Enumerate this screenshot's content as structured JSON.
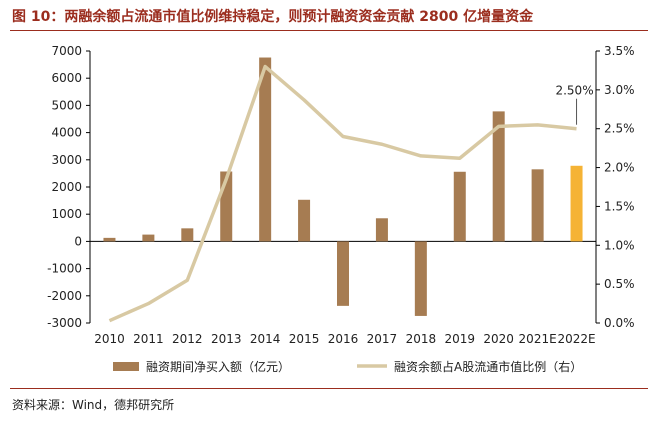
{
  "title": "图 10：两融余额占流通市值比例维持稳定，则预计融资资金贡献 2800 亿增量资金",
  "source": "资料来源：Wind，德邦研究所",
  "colors": {
    "title": "#9b2d1e",
    "bar": "#a67c52",
    "bar_highlight": "#f5b335",
    "line": "#d8c9a3",
    "axis": "#000000"
  },
  "chart_data": {
    "type": "bar",
    "categories": [
      "2010",
      "2011",
      "2012",
      "2013",
      "2014",
      "2015",
      "2016",
      "2017",
      "2018",
      "2019",
      "2020",
      "2021E",
      "2022E"
    ],
    "series": [
      {
        "name": "融资期间净买入额（亿元）",
        "type": "bar",
        "axis": "left",
        "values": [
          130,
          250,
          480,
          2570,
          6760,
          1530,
          -2370,
          850,
          -2740,
          2560,
          4780,
          2650,
          2780
        ],
        "highlight_index": 12
      },
      {
        "name": "融资余额占A股流通市值比例（右）",
        "type": "line",
        "axis": "right",
        "values": [
          0.03,
          0.25,
          0.55,
          1.85,
          3.3,
          2.87,
          2.4,
          2.3,
          2.15,
          2.12,
          2.53,
          2.55,
          2.5
        ]
      }
    ],
    "y_left": {
      "min": -3000,
      "max": 7000,
      "ticks": [
        "7000",
        "6000",
        "5000",
        "4000",
        "3000",
        "2000",
        "1000",
        "0",
        "-1000",
        "-2000",
        "-3000"
      ]
    },
    "y_right": {
      "min": 0.0,
      "max": 3.5,
      "ticks": [
        "3.5%",
        "3.0%",
        "2.5%",
        "2.0%",
        "1.5%",
        "1.0%",
        "0.5%",
        "0.0%"
      ]
    },
    "annotation": {
      "text": "2.50%",
      "index": 12
    },
    "legend_position": "bottom",
    "grid": false
  }
}
